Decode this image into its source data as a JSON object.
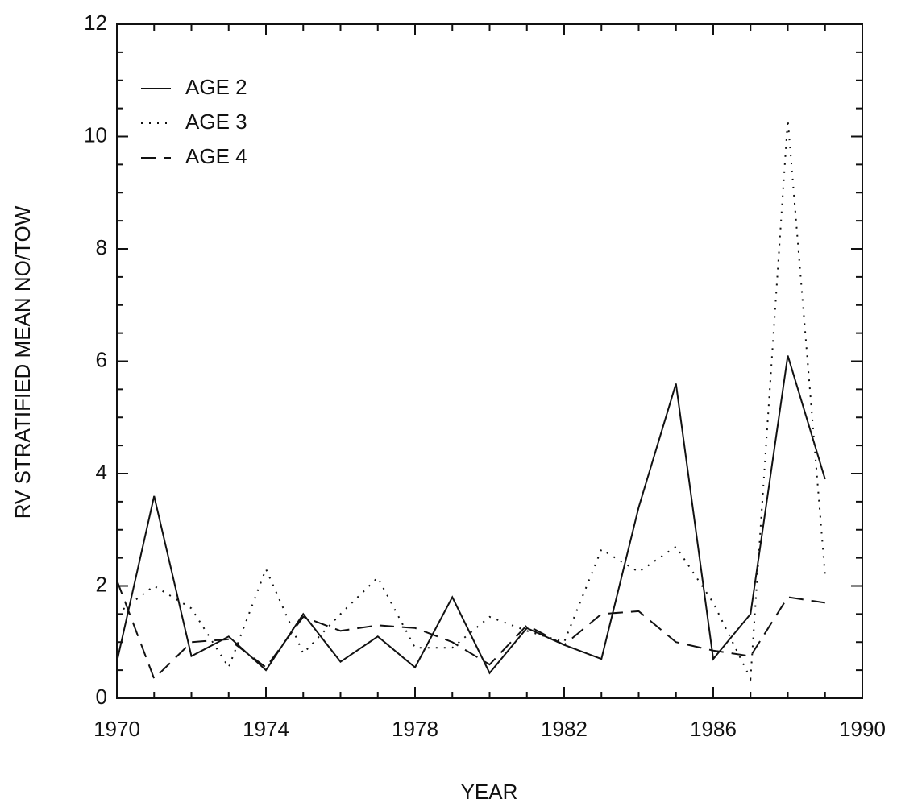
{
  "chart_data": {
    "type": "line",
    "x_label": "YEAR",
    "y_label": "RV STRATIFIED MEAN NO/TOW",
    "x": [
      1970,
      1971,
      1972,
      1973,
      1974,
      1975,
      1976,
      1977,
      1978,
      1979,
      1980,
      1981,
      1982,
      1983,
      1984,
      1985,
      1986,
      1987,
      1988,
      1989
    ],
    "series": [
      {
        "name": "AGE 2",
        "color": "#111111",
        "style": "solid",
        "values": [
          0.65,
          3.6,
          0.75,
          1.1,
          0.5,
          1.5,
          0.65,
          1.1,
          0.55,
          1.8,
          0.45,
          1.25,
          0.95,
          0.7,
          3.4,
          5.6,
          0.7,
          1.5,
          6.1,
          3.9
        ]
      },
      {
        "name": "AGE 3",
        "color": "#111111",
        "style": "dotted",
        "values": [
          1.5,
          2.0,
          1.6,
          0.55,
          2.3,
          0.8,
          1.5,
          2.15,
          0.9,
          0.9,
          1.45,
          1.2,
          1.0,
          2.65,
          2.25,
          2.7,
          1.7,
          0.35,
          10.3,
          2.2
        ]
      },
      {
        "name": "AGE 4",
        "color": "#111111",
        "style": "dashed",
        "values": [
          2.1,
          0.35,
          1.0,
          1.05,
          0.55,
          1.45,
          1.2,
          1.3,
          1.25,
          1.0,
          0.6,
          1.3,
          0.95,
          1.5,
          1.55,
          1.0,
          0.85,
          0.75,
          1.8,
          1.7
        ]
      }
    ],
    "xlim": [
      1970,
      1990
    ],
    "xticks": [
      1970,
      1974,
      1978,
      1982,
      1986,
      1990
    ],
    "ylim": [
      0,
      12
    ],
    "yticks": [
      0,
      2,
      4,
      6,
      8,
      10,
      12
    ],
    "legend": "upper left"
  }
}
